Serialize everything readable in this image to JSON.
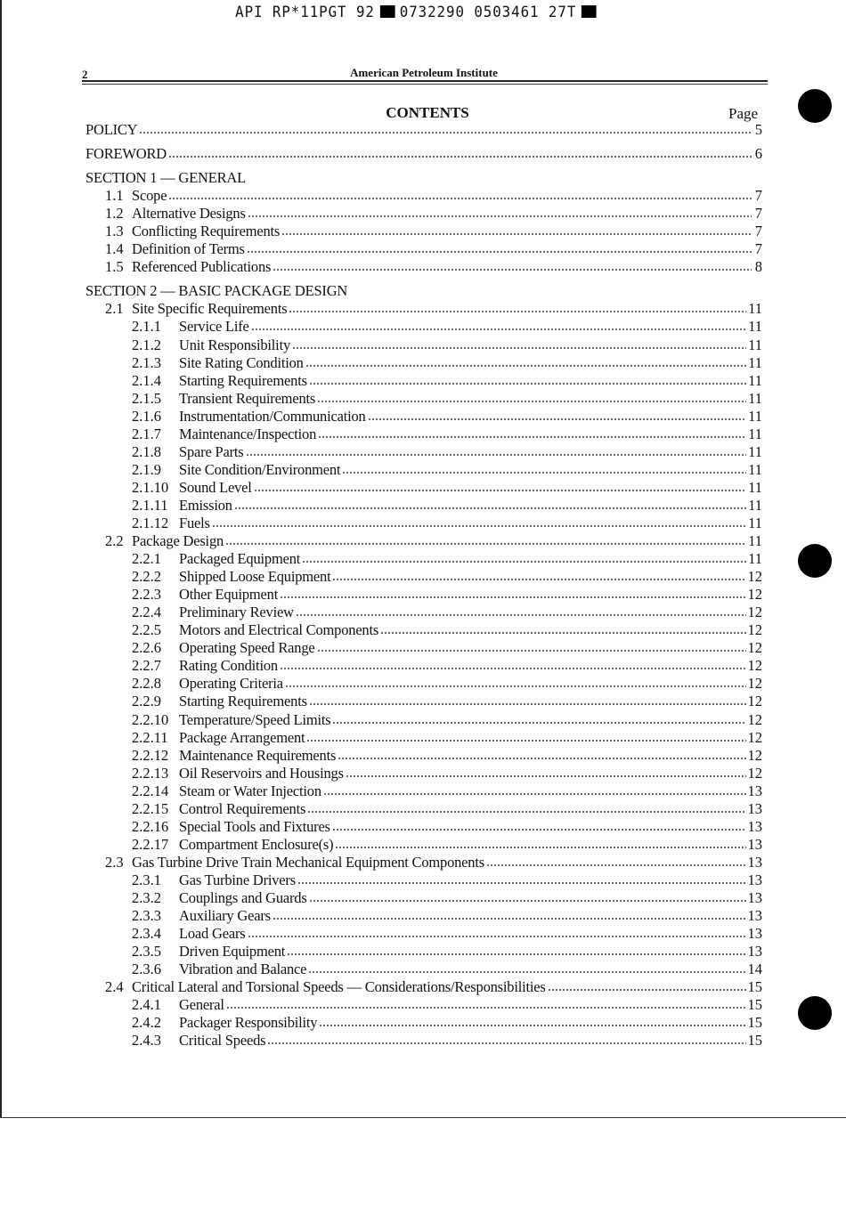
{
  "stamp": {
    "left": "API RP*11PGT 92",
    "middle": "0732290 0503461 27T"
  },
  "header": {
    "page_number": "2",
    "running_head": "American Petroleum Institute"
  },
  "title": "CONTENTS",
  "page_col": "Page",
  "entries": [
    {
      "level": 0,
      "label": "POLICY",
      "page": "5"
    },
    {
      "level": 0,
      "label": "FOREWORD",
      "page": "6",
      "sec": true
    },
    {
      "level": 0,
      "label": "SECTION 1 — GENERAL",
      "sec": true
    },
    {
      "level": 2,
      "num": "1.1",
      "label": "Scope",
      "page": "7"
    },
    {
      "level": 2,
      "num": "1.2",
      "label": "Alternative Designs",
      "page": "7"
    },
    {
      "level": 2,
      "num": "1.3",
      "label": "Conflicting Requirements",
      "page": "7"
    },
    {
      "level": 2,
      "num": "1.4",
      "label": "Definition of Terms",
      "page": "7"
    },
    {
      "level": 2,
      "num": "1.5",
      "label": "Referenced Publications",
      "page": "8"
    },
    {
      "level": 0,
      "label": "SECTION 2 — BASIC PACKAGE DESIGN",
      "sec": true
    },
    {
      "level": 2,
      "num": "2.1",
      "label": "Site Specific Requirements",
      "page": "11"
    },
    {
      "level": 3,
      "num": "2.1.1",
      "label": "Service Life",
      "page": "11"
    },
    {
      "level": 3,
      "num": "2.1.2",
      "label": "Unit Responsibility",
      "page": "11"
    },
    {
      "level": 3,
      "num": "2.1.3",
      "label": "Site Rating Condition",
      "page": "11"
    },
    {
      "level": 3,
      "num": "2.1.4",
      "label": "Starting Requirements",
      "page": "11"
    },
    {
      "level": 3,
      "num": "2.1.5",
      "label": "Transient Requirements",
      "page": "11"
    },
    {
      "level": 3,
      "num": "2.1.6",
      "label": "Instrumentation/Communication",
      "page": "11"
    },
    {
      "level": 3,
      "num": "2.1.7",
      "label": "Maintenance/Inspection",
      "page": "11"
    },
    {
      "level": 3,
      "num": "2.1.8",
      "label": "Spare Parts",
      "page": "11"
    },
    {
      "level": 3,
      "num": "2.1.9",
      "label": "Site Condition/Environment",
      "page": "11"
    },
    {
      "level": 3,
      "num": "2.1.10",
      "label": "Sound Level",
      "page": "11"
    },
    {
      "level": 3,
      "num": "2.1.11",
      "label": "Emission",
      "page": "11"
    },
    {
      "level": 3,
      "num": "2.1.12",
      "label": "Fuels",
      "page": "11"
    },
    {
      "level": 2,
      "num": "2.2",
      "label": "Package Design",
      "page": "11"
    },
    {
      "level": 3,
      "num": "2.2.1",
      "label": "Packaged Equipment",
      "page": "11"
    },
    {
      "level": 3,
      "num": "2.2.2",
      "label": "Shipped Loose Equipment",
      "page": "12"
    },
    {
      "level": 3,
      "num": "2.2.3",
      "label": "Other Equipment",
      "page": "12"
    },
    {
      "level": 3,
      "num": "2.2.4",
      "label": "Preliminary Review",
      "page": "12"
    },
    {
      "level": 3,
      "num": "2.2.5",
      "label": "Motors and Electrical Components",
      "page": "12"
    },
    {
      "level": 3,
      "num": "2.2.6",
      "label": "Operating Speed Range",
      "page": "12"
    },
    {
      "level": 3,
      "num": "2.2.7",
      "label": "Rating Condition",
      "page": "12"
    },
    {
      "level": 3,
      "num": "2.2.8",
      "label": "Operating Criteria",
      "page": "12"
    },
    {
      "level": 3,
      "num": "2.2.9",
      "label": "Starting Requirements",
      "page": "12"
    },
    {
      "level": 3,
      "num": "2.2.10",
      "label": "Temperature/Speed Limits",
      "page": "12"
    },
    {
      "level": 3,
      "num": "2.2.11",
      "label": "Package Arrangement",
      "page": "12"
    },
    {
      "level": 3,
      "num": "2.2.12",
      "label": "Maintenance Requirements",
      "page": "12"
    },
    {
      "level": 3,
      "num": "2.2.13",
      "label": "Oil Reservoirs and Housings",
      "page": "12"
    },
    {
      "level": 3,
      "num": "2.2.14",
      "label": "Steam or Water Injection",
      "page": "13"
    },
    {
      "level": 3,
      "num": "2.2.15",
      "label": "Control Requirements",
      "page": "13"
    },
    {
      "level": 3,
      "num": "2.2.16",
      "label": "Special Tools and Fixtures",
      "page": "13"
    },
    {
      "level": 3,
      "num": "2.2.17",
      "label": "Compartment Enclosure(s)",
      "page": "13"
    },
    {
      "level": 2,
      "num": "2.3",
      "label": "Gas Turbine Drive Train Mechanical Equipment Components",
      "page": "13"
    },
    {
      "level": 3,
      "num": "2.3.1",
      "label": "Gas Turbine Drivers",
      "page": "13"
    },
    {
      "level": 3,
      "num": "2.3.2",
      "label": "Couplings and Guards",
      "page": "13"
    },
    {
      "level": 3,
      "num": "2.3.3",
      "label": "Auxiliary Gears",
      "page": "13"
    },
    {
      "level": 3,
      "num": "2.3.4",
      "label": "Load Gears",
      "page": "13"
    },
    {
      "level": 3,
      "num": "2.3.5",
      "label": "Driven Equipment",
      "page": "13"
    },
    {
      "level": 3,
      "num": "2.3.6",
      "label": "Vibration and Balance",
      "page": "14"
    },
    {
      "level": 2,
      "num": "2.4",
      "label": "Critical Lateral and Torsional Speeds — Considerations/Responsibilities",
      "page": "15"
    },
    {
      "level": 3,
      "num": "2.4.1",
      "label": "General",
      "page": "15"
    },
    {
      "level": 3,
      "num": "2.4.2",
      "label": "Packager Responsibility",
      "page": "15"
    },
    {
      "level": 3,
      "num": "2.4.3",
      "label": "Critical Speeds",
      "page": "15"
    }
  ]
}
